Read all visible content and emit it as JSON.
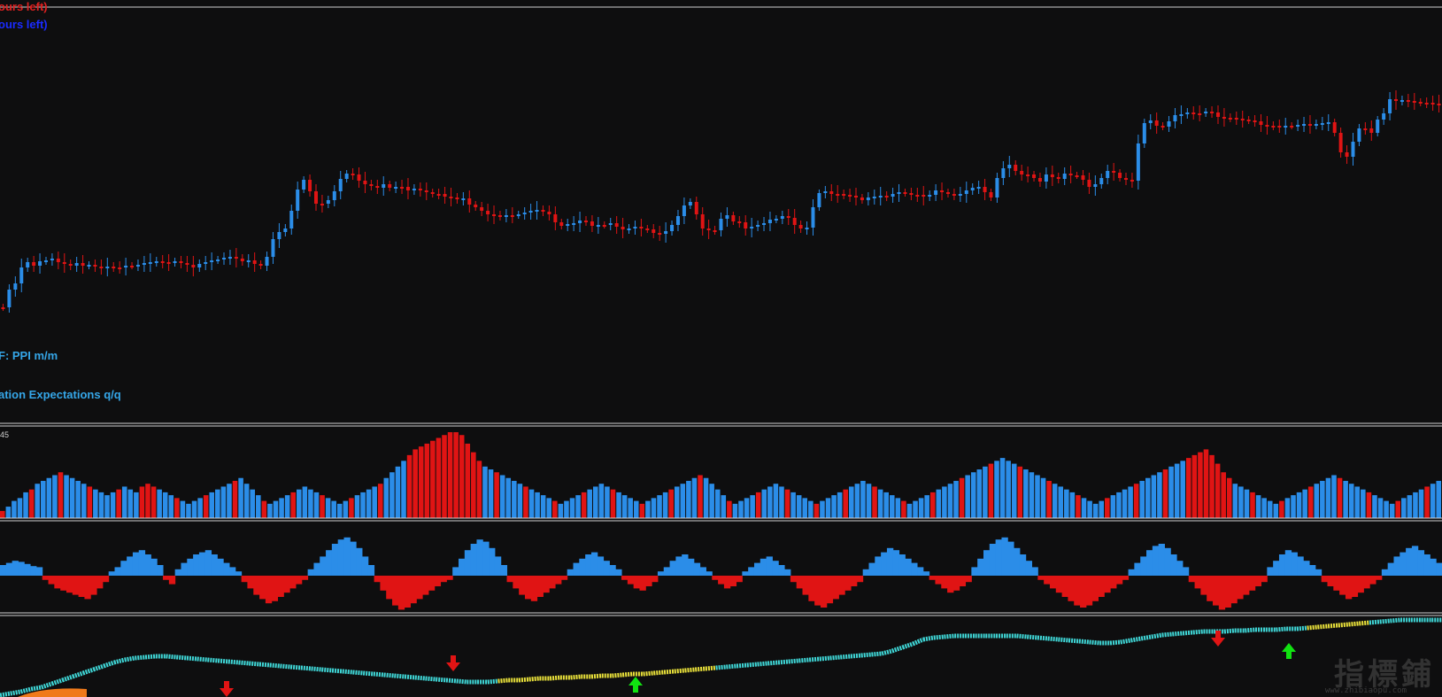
{
  "labels": {
    "top_red": "ours left)",
    "top_blue": "ours left)",
    "event1": "F: PPI m/m",
    "event2": "ation Expectations q/q",
    "pane2_value": "45"
  },
  "watermark": {
    "main": "指標鋪",
    "sub": "www.zhibiaopu.com"
  },
  "colors": {
    "background": "#0e0e0f",
    "bull": "#2b8de8",
    "bear": "#e01414",
    "separator": "#d0d0d0",
    "trail_up": "#3fd6d6",
    "trail_down": "#e8e03a",
    "arrow_up": "#11e211",
    "arrow_down": "#e01414"
  },
  "chart_data": [
    {
      "type": "candlestick",
      "pane": "price",
      "close": [
        560,
        562,
        571,
        585,
        598,
        605,
        603,
        610,
        612,
        605,
        603,
        604,
        606,
        601,
        602,
        600,
        598,
        598,
        596,
        597,
        596,
        596,
        598,
        599,
        600,
        601,
        600,
        600,
        601,
        600,
        599,
        598,
        599,
        600,
        601,
        602,
        604,
        606,
        606,
        604,
        607,
        598,
        590,
        597,
        616,
        623,
        629,
        652,
        679,
        690,
        670,
        655,
        657,
        661,
        672,
        690,
        699,
        698,
        690,
        687,
        684,
        684,
        689,
        686,
        686,
        685,
        683,
        684,
        682,
        680,
        678,
        677,
        674,
        673,
        670,
        673,
        666,
        663,
        658,
        653,
        653,
        652,
        653,
        653,
        654,
        656,
        659,
        660,
        657,
        653,
        645,
        641,
        643,
        644,
        646,
        645,
        640,
        641,
        641,
        642,
        639,
        636,
        637,
        639,
        637,
        636,
        632,
        630,
        634,
        641,
        650,
        664,
        668,
        654,
        638,
        636,
        635,
        648,
        652,
        646,
        645,
        637,
        640,
        641,
        643,
        647,
        648,
        650,
        648,
        640,
        638,
        639,
        662,
        677,
        678,
        675,
        676,
        675,
        674,
        672,
        669,
        672,
        672,
        673,
        672,
        676,
        678,
        676,
        675,
        674,
        673,
        676,
        679,
        678,
        676,
        675,
        677,
        680,
        684,
        684,
        678,
        672,
        694,
        705,
        709,
        701,
        697,
        697,
        693,
        690,
        698,
        694,
        692,
        698,
        697,
        697,
        692,
        683,
        686,
        693,
        701,
        699,
        693,
        692,
        691,
        732,
        755,
        758,
        752,
        752,
        757,
        764,
        765,
        767,
        766,
        766,
        768,
        766,
        762,
        761,
        761,
        760,
        760,
        758,
        757,
        753,
        752,
        752,
        751,
        752,
        753,
        753,
        754,
        753,
        755,
        755,
        756,
        744,
        722,
        718,
        734,
        749,
        749,
        744,
        759,
        766,
        781,
        780,
        781,
        780,
        779,
        778,
        777,
        777,
        776
      ],
      "low_y_px": [
        347,
        327,
        320,
        302,
        296,
        300,
        295,
        294,
        292,
        296,
        298,
        300,
        297,
        300,
        299,
        301,
        302,
        301,
        302,
        302,
        300,
        300,
        299,
        297,
        296,
        295,
        296,
        297,
        295,
        297,
        299,
        302,
        298,
        296,
        294,
        293,
        291,
        290,
        292,
        295,
        294,
        298,
        300,
        290,
        270,
        262,
        258,
        238,
        214,
        203,
        216,
        230,
        230,
        226,
        216,
        202,
        196,
        197,
        204,
        208,
        210,
        212,
        208,
        212,
        211,
        211,
        215,
        213,
        215,
        217,
        219,
        219,
        222,
        223,
        225,
        224,
        231,
        234,
        238,
        242,
        243,
        244,
        243,
        243,
        242,
        240,
        238,
        237,
        239,
        242,
        251,
        255,
        253,
        252,
        249,
        250,
        255,
        254,
        254,
        252,
        256,
        259,
        258,
        256,
        258,
        259,
        263,
        264,
        261,
        254,
        244,
        232,
        228,
        242,
        258,
        260,
        260,
        247,
        243,
        250,
        251,
        258,
        256,
        254,
        252,
        248,
        247,
        244,
        246,
        254,
        258,
        257,
        234,
        218,
        216,
        219,
        219,
        220,
        221,
        223,
        226,
        223,
        222,
        221,
        222,
        219,
        217,
        218,
        220,
        220,
        222,
        220,
        215,
        217,
        219,
        220,
        219,
        215,
        212,
        211,
        217,
        223,
        201,
        190,
        186,
        193,
        197,
        197,
        201,
        205,
        197,
        200,
        202,
        196,
        198,
        198,
        203,
        211,
        208,
        201,
        193,
        195,
        201,
        203,
        204,
        162,
        139,
        136,
        142,
        143,
        137,
        130,
        129,
        127,
        128,
        128,
        126,
        127,
        132,
        133,
        133,
        134,
        135,
        136,
        137,
        141,
        142,
        142,
        143,
        142,
        142,
        141,
        140,
        141,
        140,
        139,
        138,
        150,
        172,
        177,
        160,
        145,
        145,
        150,
        135,
        128,
        112,
        114,
        113,
        114,
        115,
        116,
        116,
        117,
        117
      ]
    },
    {
      "type": "bar",
      "pane": "histogram",
      "series": [
        {
          "values": [
            5,
            8,
            12,
            14,
            18,
            20,
            24,
            26,
            28,
            30,
            32,
            30,
            28,
            26,
            24,
            22,
            20,
            18,
            16,
            18,
            20,
            22,
            20,
            18,
            22,
            24,
            22,
            20,
            18,
            16,
            14,
            12,
            10,
            12,
            14,
            16,
            18,
            20,
            22,
            24,
            26,
            28,
            24,
            20,
            16,
            12,
            10,
            12,
            14,
            16,
            18,
            20,
            22,
            20,
            18,
            16,
            14,
            12,
            10,
            12,
            14,
            16,
            18,
            20,
            22,
            24,
            28,
            32,
            36,
            40,
            44,
            48,
            50,
            52,
            54,
            56,
            58,
            60,
            60,
            58,
            52,
            46,
            40,
            36,
            34,
            32,
            30,
            28,
            26,
            24,
            22,
            20,
            18,
            16,
            14,
            12,
            10,
            12,
            14,
            16,
            18,
            20,
            22,
            24,
            22,
            20,
            18,
            16,
            14,
            12,
            10,
            12,
            14,
            16,
            18,
            20,
            22,
            24,
            26,
            28,
            30,
            28,
            24,
            20,
            16,
            12,
            10,
            12,
            14,
            16,
            18,
            20,
            22,
            24,
            22,
            20,
            18,
            16,
            14,
            12,
            10,
            12,
            14,
            16,
            18,
            20,
            22,
            24,
            26,
            24,
            22,
            20,
            18,
            16,
            14,
            12,
            10,
            12,
            14,
            16,
            18,
            20,
            22,
            24,
            26,
            28,
            30,
            32,
            34,
            36,
            38,
            40,
            42,
            40,
            38,
            36,
            34,
            32,
            30,
            28,
            26,
            24,
            22,
            20,
            18,
            16,
            14,
            12,
            10,
            12,
            14,
            16,
            18,
            20,
            22,
            24,
            26,
            28,
            30,
            32,
            34,
            36,
            38,
            40,
            42,
            44,
            46,
            48,
            44,
            38,
            32,
            28,
            24,
            22,
            20,
            18,
            16,
            14,
            12,
            10,
            12,
            14,
            16,
            18,
            20,
            22,
            24,
            26,
            28,
            30,
            28,
            26,
            24,
            22,
            20,
            18,
            16,
            14,
            12,
            10,
            12,
            14,
            16,
            18,
            20,
            22,
            24,
            26
          ]
        }
      ]
    },
    {
      "type": "bar",
      "pane": "oscillator",
      "series": [
        {
          "values": [
            10,
            12,
            14,
            13,
            11,
            9,
            8,
            -4,
            -8,
            -12,
            -14,
            -16,
            -18,
            -20,
            -22,
            -18,
            -12,
            -6,
            4,
            8,
            14,
            18,
            22,
            24,
            20,
            16,
            10,
            -4,
            -8,
            6,
            12,
            16,
            20,
            22,
            24,
            20,
            16,
            12,
            8,
            4,
            -6,
            -12,
            -18,
            -22,
            -26,
            -24,
            -20,
            -16,
            -12,
            -8,
            -4,
            6,
            12,
            18,
            24,
            30,
            34,
            36,
            32,
            26,
            18,
            10,
            -6,
            -14,
            -22,
            -28,
            -32,
            -30,
            -26,
            -22,
            -18,
            -14,
            -10,
            -6,
            -4,
            8,
            16,
            24,
            30,
            34,
            32,
            26,
            18,
            10,
            -6,
            -12,
            -18,
            -22,
            -24,
            -20,
            -16,
            -12,
            -8,
            -4,
            6,
            12,
            16,
            20,
            22,
            18,
            14,
            10,
            6,
            -4,
            -8,
            -12,
            -14,
            -10,
            -6,
            4,
            8,
            14,
            18,
            20,
            16,
            12,
            8,
            4,
            -4,
            -8,
            -12,
            -10,
            -6,
            4,
            8,
            12,
            16,
            18,
            14,
            10,
            6,
            -6,
            -12,
            -18,
            -24,
            -28,
            -30,
            -26,
            -22,
            -18,
            -14,
            -10,
            -6,
            6,
            12,
            18,
            22,
            26,
            24,
            20,
            16,
            12,
            8,
            4,
            -4,
            -8,
            -12,
            -16,
            -14,
            -10,
            -6,
            8,
            16,
            24,
            30,
            34,
            36,
            32,
            26,
            20,
            14,
            8,
            -4,
            -8,
            -12,
            -16,
            -20,
            -24,
            -28,
            -30,
            -28,
            -24,
            -20,
            -16,
            -12,
            -8,
            -4,
            6,
            12,
            18,
            24,
            28,
            30,
            26,
            20,
            14,
            8,
            -6,
            -12,
            -18,
            -24,
            -28,
            -32,
            -30,
            -26,
            -22,
            -18,
            -14,
            -10,
            -6,
            8,
            14,
            20,
            24,
            22,
            18,
            14,
            10,
            6,
            -6,
            -10,
            -14,
            -18,
            -22,
            -20,
            -16,
            -12,
            -8,
            -4,
            6,
            12,
            18,
            22,
            26,
            28,
            24,
            20,
            16,
            12
          ]
        }
      ]
    },
    {
      "type": "line",
      "pane": "trail",
      "series": [
        {
          "values": [
            785,
            783,
            781,
            778,
            776,
            772,
            768,
            764,
            760,
            756,
            752,
            748,
            745,
            743,
            742,
            741,
            741,
            742,
            743,
            744,
            745,
            746,
            747,
            748,
            749,
            750,
            751,
            752,
            753,
            754,
            755,
            756,
            757,
            758,
            759,
            760,
            761,
            762,
            763,
            764,
            765,
            766,
            767,
            768,
            769,
            770,
            770,
            770,
            769,
            768,
            768,
            767,
            766,
            766,
            765,
            765,
            764,
            764,
            763,
            763,
            762,
            761,
            761,
            760,
            759,
            758,
            757,
            756,
            755,
            754,
            753,
            752,
            751,
            750,
            749,
            748,
            747,
            746,
            745,
            744,
            743,
            742,
            741,
            740,
            739,
            738,
            735,
            731,
            727,
            722,
            720,
            719,
            718,
            718,
            718,
            718,
            718,
            718,
            718,
            719,
            720,
            721,
            722,
            723,
            724,
            725,
            726,
            726,
            725,
            723,
            721,
            719,
            717,
            716,
            715,
            714,
            713,
            713,
            713,
            712,
            712,
            711,
            711,
            711,
            710,
            710,
            709,
            708,
            707,
            706,
            705,
            704,
            703,
            702,
            701,
            700,
            700,
            700,
            700,
            700
          ]
        }
      ]
    }
  ]
}
